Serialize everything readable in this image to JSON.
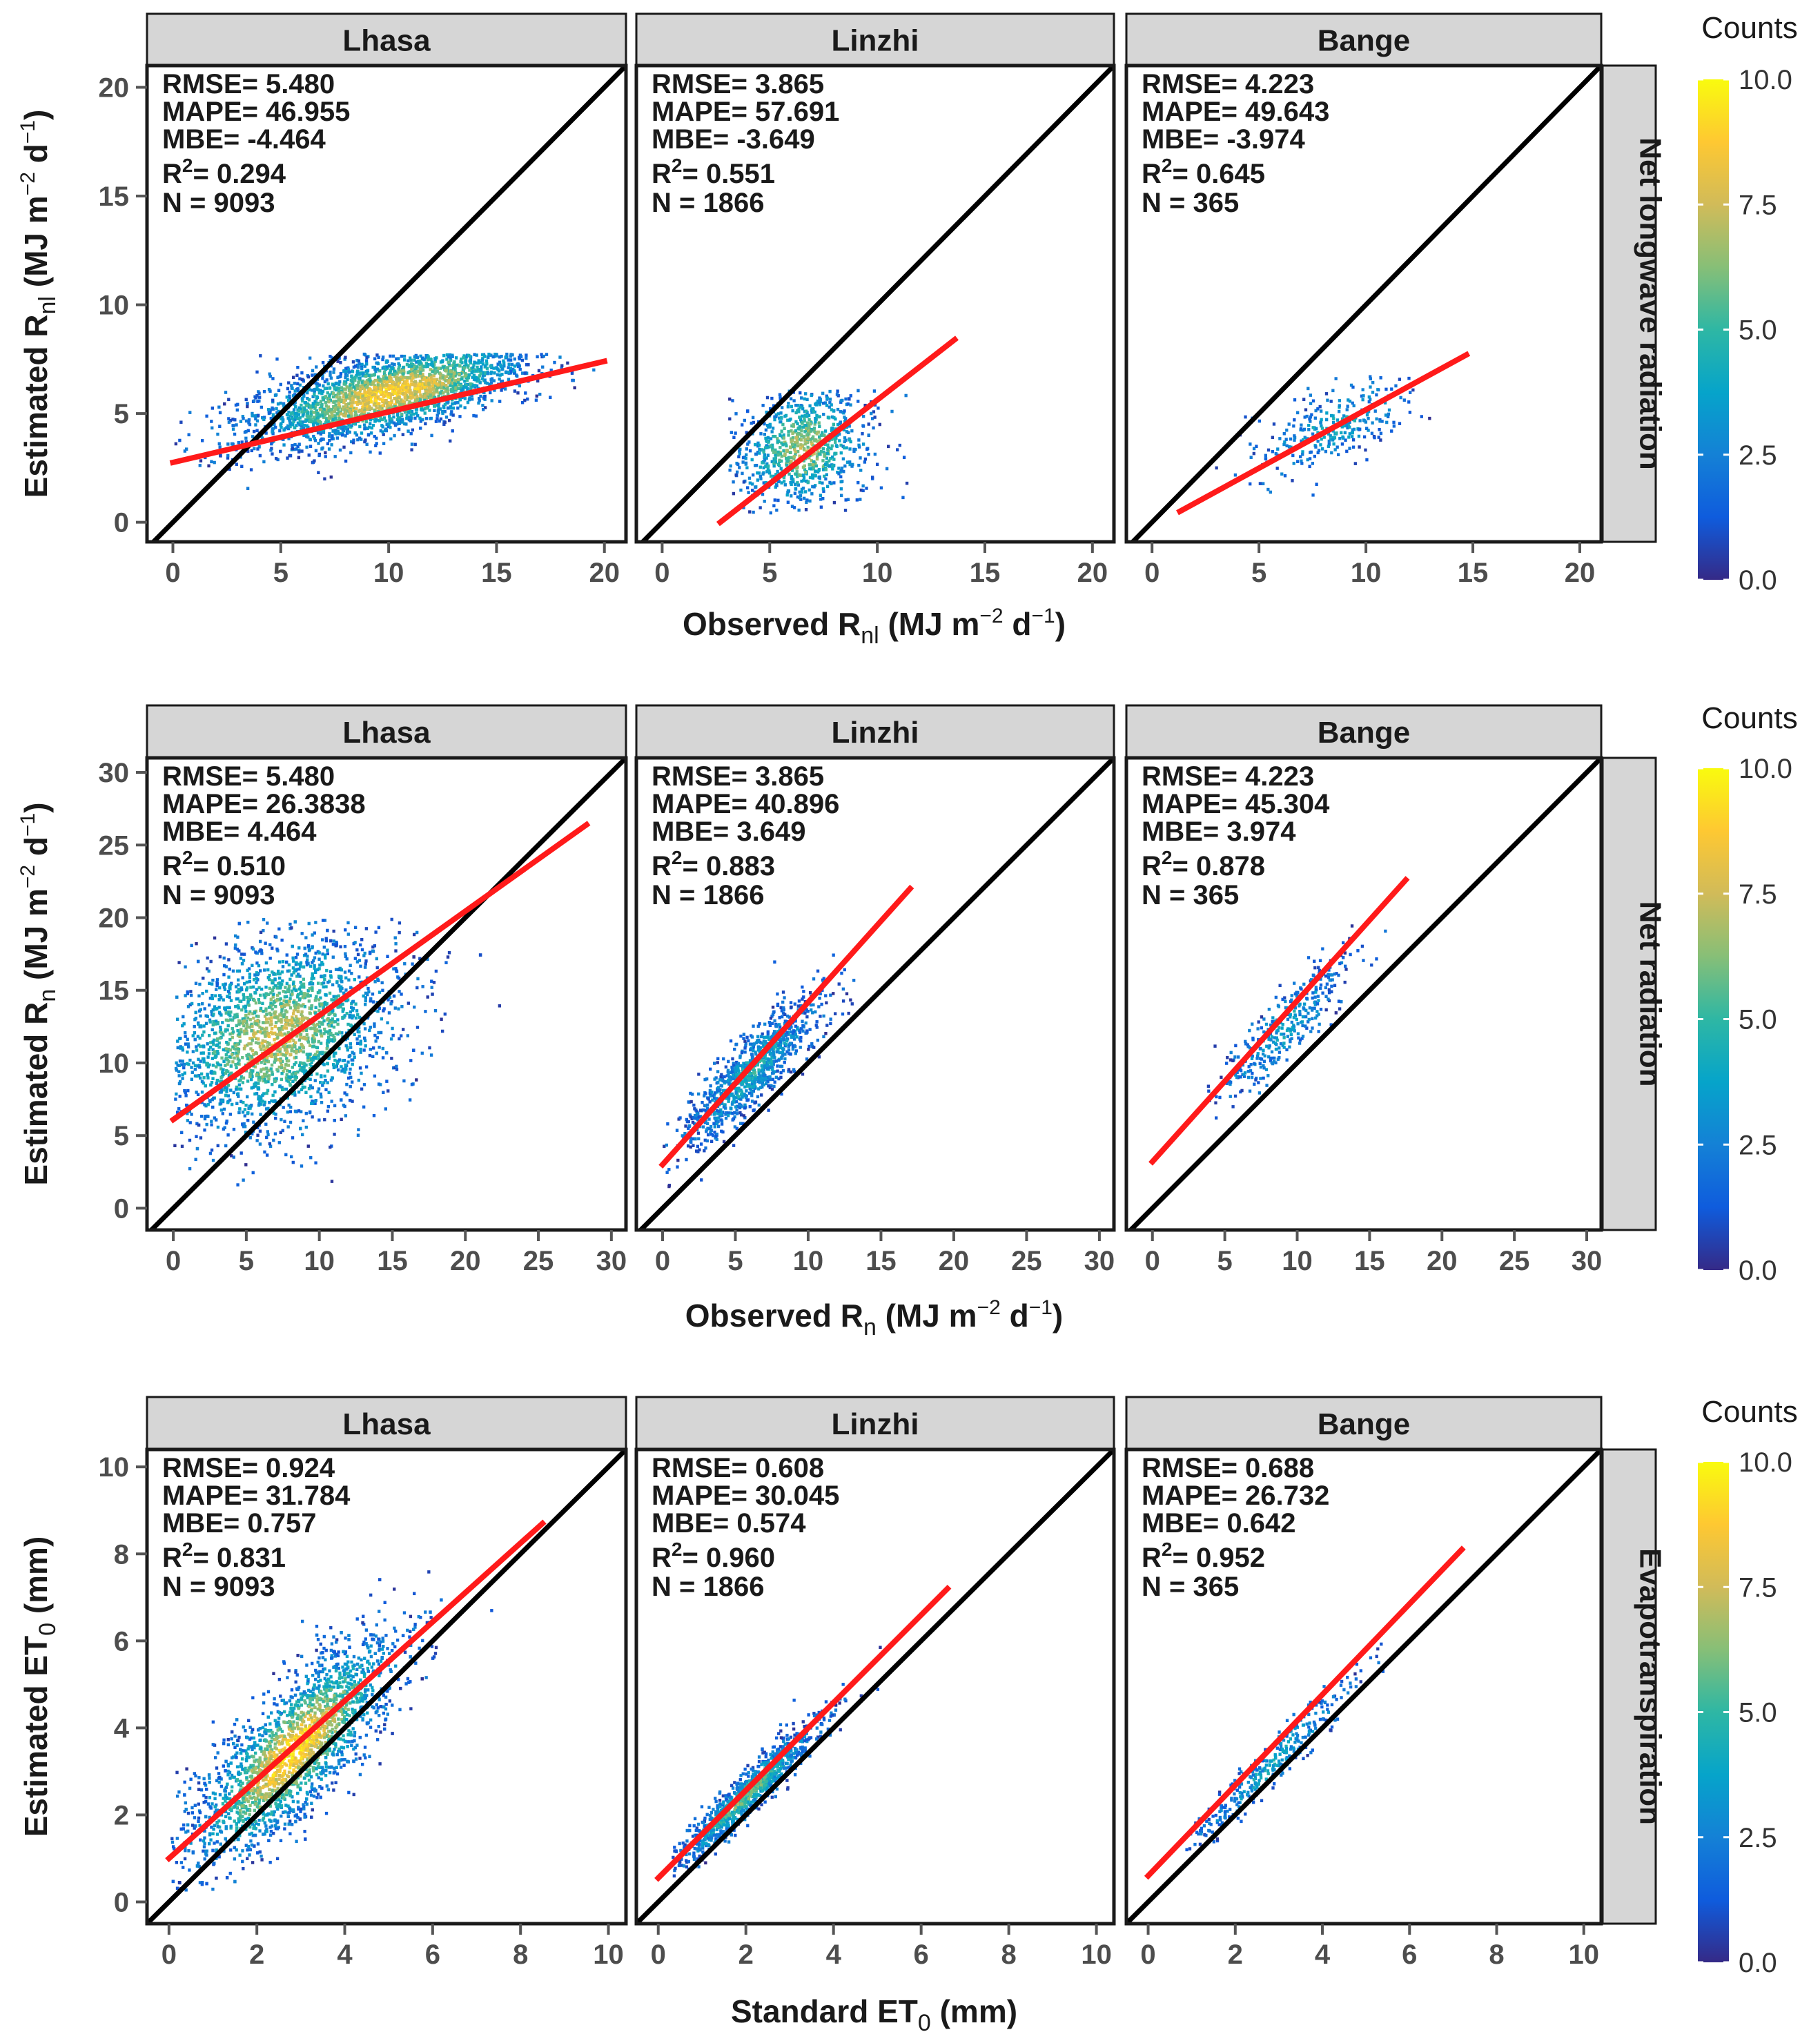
{
  "colorbar": {
    "title": "Counts",
    "ticks": [
      {
        "value": 10.0,
        "label": "10.0"
      },
      {
        "value": 7.5,
        "label": "7.5"
      },
      {
        "value": 5.0,
        "label": "5.0"
      },
      {
        "value": 2.5,
        "label": "2.5"
      },
      {
        "value": 0.0,
        "label": "0.0"
      }
    ],
    "stops": [
      "#352a87",
      "#0f5cdd",
      "#1481d6",
      "#06a4ca",
      "#2eb7a4",
      "#87bf77",
      "#d1bb59",
      "#fec832",
      "#f9fb0e"
    ]
  },
  "colors": {
    "fit_line": "#ff1a1a",
    "identity_line": "#000000",
    "strip": "#d6d6d6"
  },
  "chart_data": [
    {
      "type": "heatmap",
      "row_label": "Net longwave radiation",
      "xlabel": {
        "main": "Observed R",
        "sub": "nl",
        "unit": " (MJ m",
        "sup": "−2",
        "unit2": " d",
        "sup2": "−1",
        "end": ")"
      },
      "ylabel": {
        "main": "Estimated R",
        "sub": "nl",
        "unit": " (MJ m",
        "sup": "−2",
        "unit2": " d",
        "sup2": "−1",
        "end": ")"
      },
      "xlim": [
        -1.2,
        21
      ],
      "ylim": [
        -0.9,
        21
      ],
      "xticks": [
        0,
        5,
        10,
        15,
        20
      ],
      "yticks": [
        0,
        5,
        10,
        15,
        20
      ],
      "panels": [
        {
          "site": "Lhasa",
          "rmse": "5.480",
          "mape": "46.955",
          "mbe": "-4.464",
          "r2": "0.294",
          "n": "9093",
          "fit": [
            [
              0,
              2.75
            ],
            [
              20,
              7.4
            ]
          ],
          "density": {
            "center": [
              10,
              6
            ],
            "spread": [
              3.5,
              0.9
            ],
            "angle": 0.25,
            "range_x": [
              0,
              19.5
            ],
            "range_y": [
              0.5,
              7.8
            ],
            "npoints": 2600,
            "dense": 0.55
          }
        },
        {
          "site": "Linzhi",
          "rmse": " 3.865",
          "mape": "57.691",
          "mbe": "-3.649",
          "r2": "0.551",
          "n": "1866",
          "fit": [
            [
              2.7,
              0
            ],
            [
              13.6,
              8.4
            ]
          ],
          "density": {
            "center": [
              6.5,
              3.5
            ],
            "spread": [
              1.7,
              1.4
            ],
            "angle": 0.45,
            "range_x": [
              3,
              12.5
            ],
            "range_y": [
              0.5,
              6.2
            ],
            "npoints": 900,
            "dense": 0.35
          }
        },
        {
          "site": "Bange",
          "rmse": " 4.223",
          "mape": "49.643",
          "mbe": "-3.974",
          "r2": "0.645",
          "n": "365",
          "fit": [
            [
              1.3,
              0.5
            ],
            [
              14.7,
              7.7
            ]
          ],
          "density": {
            "center": [
              8.5,
              4.5
            ],
            "spread": [
              2.2,
              0.8
            ],
            "angle": 0.45,
            "range_x": [
              2,
              13
            ],
            "range_y": [
              1,
              7
            ],
            "npoints": 300,
            "dense": 0.05
          }
        }
      ]
    },
    {
      "type": "heatmap",
      "row_label": "Net radiation",
      "xlabel": {
        "main": "Observed R",
        "sub": "n",
        "unit": " (MJ m",
        "sup": "−2",
        "unit2": " d",
        "sup2": "−1",
        "end": ")"
      },
      "ylabel": {
        "main": "Estimated R",
        "sub": "n",
        "unit": " (MJ m",
        "sup": "−2",
        "unit2": " d",
        "sup2": "−1",
        "end": ")"
      },
      "xlim": [
        -1.8,
        31
      ],
      "ylim": [
        -1.5,
        31
      ],
      "xticks": [
        0,
        5,
        10,
        15,
        20,
        25,
        30
      ],
      "yticks": [
        0,
        5,
        10,
        15,
        20,
        25,
        30
      ],
      "panels": [
        {
          "site": "Lhasa",
          "rmse": "5.480",
          "mape": "26.3838",
          "mbe": "4.464",
          "r2": "0.510",
          "n": "9093",
          "fit": [
            [
              0,
              6.1
            ],
            [
              28.3,
              26.4
            ]
          ],
          "density": {
            "center": [
              7,
              12
            ],
            "spread": [
              4.5,
              3.2
            ],
            "angle": 0.5,
            "range_x": [
              0,
              24
            ],
            "range_y": [
              1,
              20
            ],
            "npoints": 2400,
            "dense": 0.4
          }
        },
        {
          "site": "Linzhi",
          "rmse": " 3.865",
          "mape": "40.896",
          "mbe": "3.649",
          "r2": "0.883",
          "n": "1866",
          "fit": [
            [
              0,
              3
            ],
            [
              17,
              22
            ]
          ],
          "density": {
            "center": [
              6,
              9.5
            ],
            "spread": [
              3.5,
              0.9
            ],
            "angle": 0.84,
            "range_x": [
              0,
              14
            ],
            "range_y": [
              0,
              18
            ],
            "npoints": 1000,
            "dense": 0.1
          }
        },
        {
          "site": "Bange",
          "rmse": " 4.223",
          "mape": "45.304",
          "mbe": "3.974",
          "r2": "0.878",
          "n": "365",
          "fit": [
            [
              0,
              3.2
            ],
            [
              17.5,
              22.6
            ]
          ],
          "density": {
            "center": [
              9,
              12.5
            ],
            "spread": [
              3.3,
              0.9
            ],
            "angle": 0.84,
            "range_x": [
              2,
              16
            ],
            "range_y": [
              5,
              21
            ],
            "npoints": 350,
            "dense": 0.05
          }
        }
      ]
    },
    {
      "type": "heatmap",
      "row_label": "Evapotranspiration",
      "xlabel": {
        "main": "Standard ET",
        "sub": "0",
        "unit": " (mm)",
        "sup": "",
        "unit2": "",
        "sup2": "",
        "end": ""
      },
      "ylabel": {
        "main": "Estimated ET",
        "sub": "0",
        "unit": " (mm)",
        "sup": "",
        "unit2": "",
        "sup2": "",
        "end": ""
      },
      "xlim": [
        -0.5,
        10.4
      ],
      "ylim": [
        -0.5,
        10.4
      ],
      "xticks": [
        0,
        2,
        4,
        6,
        8,
        10
      ],
      "yticks": [
        0,
        2,
        4,
        6,
        8,
        10
      ],
      "panels": [
        {
          "site": "Lhasa",
          "rmse": "0.924",
          "mape": "31.784",
          "mbe": "0.757",
          "r2": "0.831",
          "n": "9093",
          "fit": [
            [
              0,
              1
            ],
            [
              8.5,
              8.7
            ]
          ],
          "density": {
            "center": [
              2.8,
              3.5
            ],
            "spread": [
              1.7,
              0.55
            ],
            "angle": 0.85,
            "range_x": [
              0,
              7.5
            ],
            "range_y": [
              0.2,
              8.3
            ],
            "npoints": 2600,
            "dense": 0.6
          }
        },
        {
          "site": "Linzhi",
          "rmse": " 0.608",
          "mape": "30.045",
          "mbe": "0.574",
          "r2": "0.960",
          "n": "1866",
          "fit": [
            [
              0,
              0.55
            ],
            [
              6.6,
              7.2
            ]
          ],
          "density": {
            "center": [
              2,
              2.5
            ],
            "spread": [
              1.2,
              0.18
            ],
            "angle": 0.79,
            "range_x": [
              0.3,
              5.5
            ],
            "range_y": [
              0.5,
              6.5
            ],
            "npoints": 1100,
            "dense": 0.25
          }
        },
        {
          "site": "Bange",
          "rmse": " 0.688",
          "mape": "26.732",
          "mbe": "0.642",
          "r2": "0.952",
          "n": "365",
          "fit": [
            [
              0,
              0.6
            ],
            [
              7.2,
              8.1
            ]
          ],
          "density": {
            "center": [
              2.8,
              3.2
            ],
            "spread": [
              1.4,
              0.2
            ],
            "angle": 0.8,
            "range_x": [
              0.8,
              6.5
            ],
            "range_y": [
              1,
              7.5
            ],
            "npoints": 350,
            "dense": 0.05
          }
        }
      ]
    }
  ]
}
